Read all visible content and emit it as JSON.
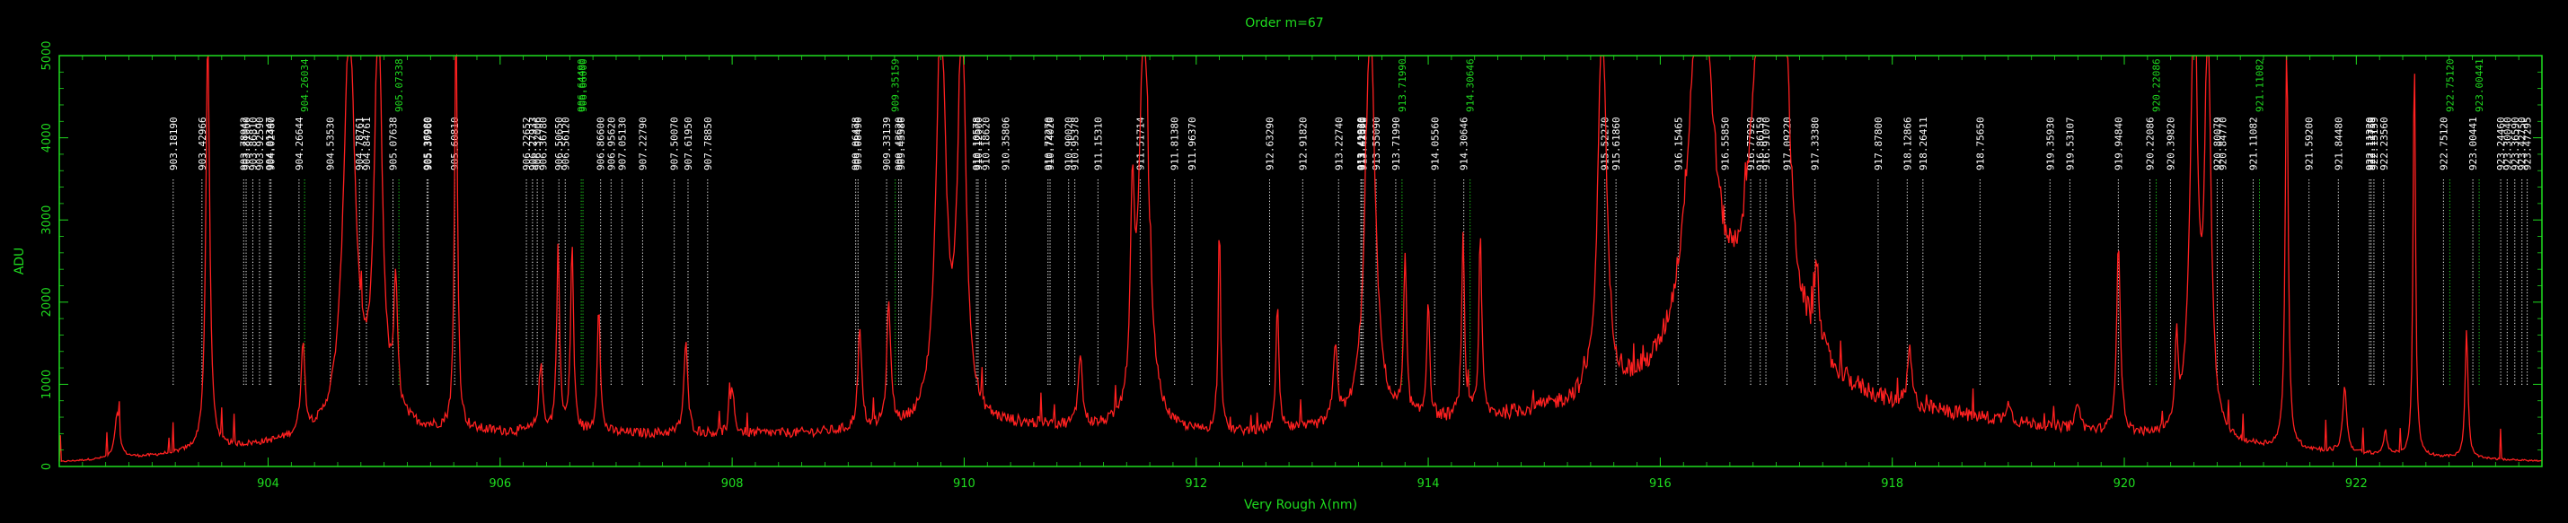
{
  "chart_data": {
    "type": "line",
    "title": "Order m=67",
    "xlabel": "Very Rough λ(nm)",
    "ylabel": "ADU",
    "xlim": [
      902.2,
      923.6
    ],
    "ylim": [
      0,
      5000
    ],
    "x_ticks": [
      904,
      906,
      908,
      910,
      912,
      914,
      916,
      918,
      920,
      922
    ],
    "y_ticks": [
      0,
      1000,
      2000,
      3000,
      4000,
      5000
    ],
    "grid": false,
    "colors": {
      "background": "#000000",
      "axes": "#1fdc1f",
      "spectrum": "#ff2020",
      "line_white": "#ffffff",
      "line_green": "#1fdc1f"
    },
    "baseline": [
      [
        902.2,
        50
      ],
      [
        903.0,
        120
      ],
      [
        903.4,
        180
      ],
      [
        904.0,
        260
      ],
      [
        904.4,
        330
      ],
      [
        905.2,
        420
      ],
      [
        906.5,
        400
      ],
      [
        907.5,
        390
      ],
      [
        908.5,
        390
      ],
      [
        909.5,
        430
      ],
      [
        910.3,
        480
      ],
      [
        910.8,
        470
      ],
      [
        911.2,
        420
      ],
      [
        911.8,
        380
      ],
      [
        912.5,
        390
      ],
      [
        913.0,
        420
      ],
      [
        913.6,
        480
      ],
      [
        914.5,
        560
      ],
      [
        915.0,
        650
      ],
      [
        915.5,
        740
      ],
      [
        916.0,
        900
      ],
      [
        916.3,
        1100
      ],
      [
        917.3,
        1050
      ],
      [
        917.6,
        850
      ],
      [
        918.0,
        700
      ],
      [
        919.0,
        520
      ],
      [
        920.0,
        360
      ],
      [
        921.0,
        230
      ],
      [
        922.0,
        150
      ],
      [
        923.0,
        90
      ],
      [
        923.6,
        60
      ]
    ],
    "peaks": [
      {
        "x": 902.7,
        "y": 560,
        "w": 0.025
      },
      {
        "x": 903.48,
        "y": 5000,
        "w": 0.02
      },
      {
        "x": 904.3,
        "y": 1100,
        "w": 0.02
      },
      {
        "x": 904.7,
        "y": 5000,
        "w": 0.06
      },
      {
        "x": 904.95,
        "y": 5000,
        "w": 0.04
      },
      {
        "x": 905.1,
        "y": 1500,
        "w": 0.02
      },
      {
        "x": 905.62,
        "y": 5000,
        "w": 0.015
      },
      {
        "x": 906.35,
        "y": 800,
        "w": 0.02
      },
      {
        "x": 906.5,
        "y": 2250,
        "w": 0.015
      },
      {
        "x": 906.62,
        "y": 2300,
        "w": 0.015
      },
      {
        "x": 906.85,
        "y": 1600,
        "w": 0.015
      },
      {
        "x": 907.6,
        "y": 1100,
        "w": 0.02
      },
      {
        "x": 908.0,
        "y": 550,
        "w": 0.02
      },
      {
        "x": 909.1,
        "y": 1200,
        "w": 0.02
      },
      {
        "x": 909.35,
        "y": 1500,
        "w": 0.02
      },
      {
        "x": 909.8,
        "y": 5000,
        "w": 0.05
      },
      {
        "x": 909.98,
        "y": 5000,
        "w": 0.04
      },
      {
        "x": 911.0,
        "y": 900,
        "w": 0.02
      },
      {
        "x": 911.45,
        "y": 2300,
        "w": 0.02
      },
      {
        "x": 911.55,
        "y": 5000,
        "w": 0.05
      },
      {
        "x": 912.2,
        "y": 2600,
        "w": 0.012
      },
      {
        "x": 912.7,
        "y": 1500,
        "w": 0.015
      },
      {
        "x": 913.2,
        "y": 950,
        "w": 0.02
      },
      {
        "x": 913.5,
        "y": 5000,
        "w": 0.05
      },
      {
        "x": 913.8,
        "y": 2000,
        "w": 0.015
      },
      {
        "x": 914.0,
        "y": 1450,
        "w": 0.015
      },
      {
        "x": 914.3,
        "y": 2150,
        "w": 0.015
      },
      {
        "x": 914.45,
        "y": 2100,
        "w": 0.015
      },
      {
        "x": 915.5,
        "y": 5000,
        "w": 0.04
      },
      {
        "x": 916.35,
        "y": 5000,
        "w": 0.12
      },
      {
        "x": 916.9,
        "y": 5000,
        "w": 0.12
      },
      {
        "x": 917.05,
        "y": 5000,
        "w": 0.05
      },
      {
        "x": 917.35,
        "y": 1000,
        "w": 0.02
      },
      {
        "x": 918.15,
        "y": 700,
        "w": 0.02
      },
      {
        "x": 919.0,
        "y": 280,
        "w": 0.02
      },
      {
        "x": 919.6,
        "y": 350,
        "w": 0.02
      },
      {
        "x": 919.95,
        "y": 2300,
        "w": 0.02
      },
      {
        "x": 920.45,
        "y": 1000,
        "w": 0.015
      },
      {
        "x": 920.6,
        "y": 5000,
        "w": 0.04
      },
      {
        "x": 920.72,
        "y": 5000,
        "w": 0.03
      },
      {
        "x": 921.4,
        "y": 5000,
        "w": 0.015
      },
      {
        "x": 921.9,
        "y": 800,
        "w": 0.02
      },
      {
        "x": 922.25,
        "y": 300,
        "w": 0.015
      },
      {
        "x": 922.5,
        "y": 5000,
        "w": 0.012
      },
      {
        "x": 922.95,
        "y": 1550,
        "w": 0.015
      }
    ],
    "line_ids": [
      {
        "x": 903.1819,
        "label": "903.18190",
        "color": "white"
      },
      {
        "x": 903.42966,
        "label": "903.42966",
        "color": "white"
      },
      {
        "x": 903.78942,
        "label": "903.78942",
        "color": "white"
      },
      {
        "x": 903.8106,
        "label": "903.81060",
        "color": "white"
      },
      {
        "x": 903.8681,
        "label": "903.86810",
        "color": "white"
      },
      {
        "x": 903.9259,
        "label": "903.92590",
        "color": "white"
      },
      {
        "x": 904.01347,
        "label": "904.01347",
        "color": "white"
      },
      {
        "x": 904.0248,
        "label": "904.02480",
        "color": "white"
      },
      {
        "x": 904.26034,
        "label": "904.26034",
        "color": "green"
      },
      {
        "x": 904.26644,
        "label": "904.26644",
        "color": "white"
      },
      {
        "x": 904.5353,
        "label": "904.53530",
        "color": "white"
      },
      {
        "x": 904.78761,
        "label": "904.78761",
        "color": "white"
      },
      {
        "x": 904.84761,
        "label": "904.84761",
        "color": "white"
      },
      {
        "x": 905.07338,
        "label": "905.07338",
        "color": "green"
      },
      {
        "x": 905.07638,
        "label": "905.07638",
        "color": "white"
      },
      {
        "x": 905.3698,
        "label": "905.36980",
        "color": "white"
      },
      {
        "x": 905.3796,
        "label": "905.37960",
        "color": "white"
      },
      {
        "x": 905.6081,
        "label": "905.60810",
        "color": "white"
      },
      {
        "x": 906.22652,
        "label": "906.22652",
        "color": "white"
      },
      {
        "x": 906.27933,
        "label": "906.27933",
        "color": "white"
      },
      {
        "x": 906.32006,
        "label": "906.32006",
        "color": "white"
      },
      {
        "x": 906.3678,
        "label": "906.36780",
        "color": "white"
      },
      {
        "x": 906.5065,
        "label": "906.50650",
        "color": "white"
      },
      {
        "x": 906.5612,
        "label": "906.56120",
        "color": "white"
      },
      {
        "x": 906.6449,
        "label": "906.64490",
        "color": "green"
      },
      {
        "x": 906.66,
        "label": "906.66000",
        "color": "green"
      },
      {
        "x": 906.866,
        "label": "906.86600",
        "color": "white"
      },
      {
        "x": 906.9562,
        "label": "906.95620",
        "color": "white"
      },
      {
        "x": 907.0513,
        "label": "907.05130",
        "color": "white"
      },
      {
        "x": 907.2279,
        "label": "907.22790",
        "color": "white"
      },
      {
        "x": 907.5007,
        "label": "907.50070",
        "color": "white"
      },
      {
        "x": 907.6195,
        "label": "907.61950",
        "color": "white"
      },
      {
        "x": 907.7885,
        "label": "907.78850",
        "color": "white"
      },
      {
        "x": 909.06478,
        "label": "909.06478",
        "color": "white"
      },
      {
        "x": 909.0849,
        "label": "909.08490",
        "color": "white"
      },
      {
        "x": 909.33139,
        "label": "909.33139",
        "color": "white"
      },
      {
        "x": 909.35159,
        "label": "909.35159",
        "color": "green"
      },
      {
        "x": 909.4362,
        "label": "909.43620",
        "color": "white"
      },
      {
        "x": 909.4558,
        "label": "909.45580",
        "color": "white"
      },
      {
        "x": 910.10578,
        "label": "910.10578",
        "color": "white"
      },
      {
        "x": 910.12,
        "label": "910.12000",
        "color": "white"
      },
      {
        "x": 910.1862,
        "label": "910.18620",
        "color": "white"
      },
      {
        "x": 910.35806,
        "label": "910.35806",
        "color": "white"
      },
      {
        "x": 910.7227,
        "label": "910.72270",
        "color": "white"
      },
      {
        "x": 910.7402,
        "label": "910.74020",
        "color": "white"
      },
      {
        "x": 910.9002,
        "label": "910.90020",
        "color": "white"
      },
      {
        "x": 910.95378,
        "label": "910.95378",
        "color": "white"
      },
      {
        "x": 911.1531,
        "label": "911.15310",
        "color": "white"
      },
      {
        "x": 911.51714,
        "label": "911.51714",
        "color": "white"
      },
      {
        "x": 911.8138,
        "label": "911.81380",
        "color": "white"
      },
      {
        "x": 911.9637,
        "label": "911.96370",
        "color": "white"
      },
      {
        "x": 912.6329,
        "label": "912.63290",
        "color": "white"
      },
      {
        "x": 912.9182,
        "label": "912.91820",
        "color": "white"
      },
      {
        "x": 913.2274,
        "label": "913.22740",
        "color": "white"
      },
      {
        "x": 913.4192,
        "label": "913.41920",
        "color": "white"
      },
      {
        "x": 913.4256,
        "label": "913.42560",
        "color": "white"
      },
      {
        "x": 913.4392,
        "label": "913.43920",
        "color": "white"
      },
      {
        "x": 913.5509,
        "label": "913.55090",
        "color": "white"
      },
      {
        "x": 913.7199,
        "label": "913.71990",
        "color": "white"
      },
      {
        "x": 913.7199,
        "label": "913.71990",
        "color": "green"
      },
      {
        "x": 914.0556,
        "label": "914.05560",
        "color": "white"
      },
      {
        "x": 914.30646,
        "label": "914.30646",
        "color": "white"
      },
      {
        "x": 914.30646,
        "label": "914.30646",
        "color": "green"
      },
      {
        "x": 915.5227,
        "label": "915.52270",
        "color": "white"
      },
      {
        "x": 915.6186,
        "label": "915.61860",
        "color": "white"
      },
      {
        "x": 916.15465,
        "label": "916.15465",
        "color": "white"
      },
      {
        "x": 916.5585,
        "label": "916.55850",
        "color": "white"
      },
      {
        "x": 916.7792,
        "label": "916.77920",
        "color": "white"
      },
      {
        "x": 916.86159,
        "label": "916.86159",
        "color": "white"
      },
      {
        "x": 916.9107,
        "label": "916.91070",
        "color": "white"
      },
      {
        "x": 917.0922,
        "label": "917.09220",
        "color": "white"
      },
      {
        "x": 917.3338,
        "label": "917.33380",
        "color": "white"
      },
      {
        "x": 917.878,
        "label": "917.87800",
        "color": "white"
      },
      {
        "x": 918.12866,
        "label": "918.12866",
        "color": "white"
      },
      {
        "x": 918.26411,
        "label": "918.26411",
        "color": "white"
      },
      {
        "x": 918.7565,
        "label": "918.75650",
        "color": "white"
      },
      {
        "x": 919.3593,
        "label": "919.35930",
        "color": "white"
      },
      {
        "x": 919.53107,
        "label": "919.53107",
        "color": "white"
      },
      {
        "x": 919.9484,
        "label": "919.94840",
        "color": "white"
      },
      {
        "x": 920.22086,
        "label": "920.22086",
        "color": "white"
      },
      {
        "x": 920.22086,
        "label": "920.22086",
        "color": "green"
      },
      {
        "x": 920.3982,
        "label": "920.39820",
        "color": "white"
      },
      {
        "x": 920.80079,
        "label": "920.80079",
        "color": "white"
      },
      {
        "x": 920.8477,
        "label": "920.84770",
        "color": "white"
      },
      {
        "x": 921.11082,
        "label": "921.11082",
        "color": "white"
      },
      {
        "x": 921.11082,
        "label": "921.11082",
        "color": "green"
      },
      {
        "x": 921.592,
        "label": "921.59200",
        "color": "white"
      },
      {
        "x": 921.8448,
        "label": "921.84480",
        "color": "white"
      },
      {
        "x": 922.1132,
        "label": "922.11320",
        "color": "white"
      },
      {
        "x": 922.12759,
        "label": "922.12759",
        "color": "white"
      },
      {
        "x": 922.15159,
        "label": "922.15159",
        "color": "white"
      },
      {
        "x": 922.2356,
        "label": "922.23560",
        "color": "white"
      },
      {
        "x": 922.7512,
        "label": "922.75120",
        "color": "white"
      },
      {
        "x": 922.7512,
        "label": "922.75120",
        "color": "green"
      },
      {
        "x": 923.00441,
        "label": "923.00441",
        "color": "white"
      },
      {
        "x": 923.00441,
        "label": "923.00441",
        "color": "green"
      },
      {
        "x": 923.2446,
        "label": "923.24460",
        "color": "white"
      },
      {
        "x": 923.3004,
        "label": "923.30040",
        "color": "white"
      },
      {
        "x": 923.3659,
        "label": "923.36590",
        "color": "white"
      },
      {
        "x": 923.4275,
        "label": "923.42750",
        "color": "white"
      },
      {
        "x": 923.47295,
        "label": "923.47295",
        "color": "white"
      }
    ]
  }
}
